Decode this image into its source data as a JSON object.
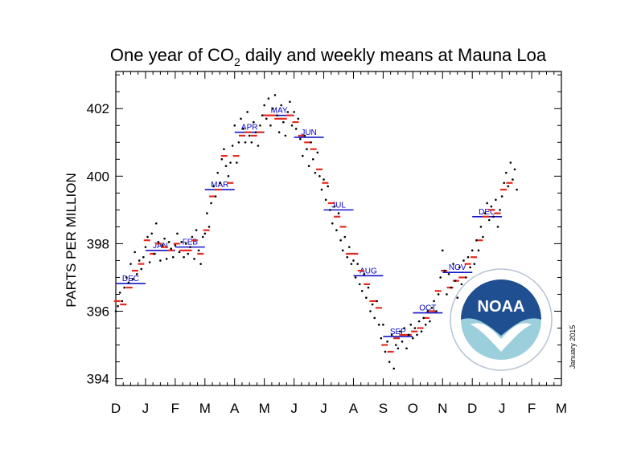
{
  "chart_data": {
    "type": "scatter",
    "title_main": "One year of CO",
    "title_sub": "2",
    "title_rest": " daily and weekly means at Mauna Loa",
    "ylabel": "PARTS PER MILLION",
    "ylim": [
      393.8,
      403.1
    ],
    "y_ticks": [
      "394",
      "396",
      "398",
      "400",
      "402"
    ],
    "x_tick_labels": [
      "D",
      "J",
      "F",
      "M",
      "A",
      "M",
      "J",
      "J",
      "A",
      "S",
      "O",
      "N",
      "D",
      "J",
      "F",
      "M"
    ],
    "date_stamp": "January 2015",
    "colors": {
      "daily": "#000000",
      "weekly": "#e8281e",
      "monthly": "#1414c8",
      "noaa_blue": "#1f4e91",
      "noaa_teal": "#9ccfdc"
    },
    "monthly_means": [
      {
        "label": "DEC",
        "start": 0.0,
        "end": 1.0,
        "value": 396.82
      },
      {
        "label": "JAN",
        "start": 1.0,
        "end": 2.0,
        "value": 397.8
      },
      {
        "label": "FEB",
        "start": 2.0,
        "end": 3.0,
        "value": 397.9
      },
      {
        "label": "MAR",
        "start": 3.0,
        "end": 4.0,
        "value": 399.6
      },
      {
        "label": "APR",
        "start": 4.0,
        "end": 5.0,
        "value": 401.3
      },
      {
        "label": "MAY",
        "start": 5.0,
        "end": 6.0,
        "value": 401.8
      },
      {
        "label": "JUN",
        "start": 6.0,
        "end": 7.0,
        "value": 401.15
      },
      {
        "label": "JUL",
        "start": 7.0,
        "end": 8.0,
        "value": 399.0
      },
      {
        "label": "AUG",
        "start": 8.0,
        "end": 9.0,
        "value": 397.05
      },
      {
        "label": "SEP",
        "start": 9.0,
        "end": 10.0,
        "value": 395.25
      },
      {
        "label": "OCT",
        "start": 10.0,
        "end": 11.0,
        "value": 395.95
      },
      {
        "label": "NOV",
        "start": 11.0,
        "end": 12.0,
        "value": 397.15
      },
      {
        "label": "DEC",
        "start": 12.0,
        "end": 13.0,
        "value": 398.8
      }
    ],
    "weekly_means": [
      [
        0.05,
        396.3
      ],
      [
        0.25,
        396.2
      ],
      [
        0.45,
        396.7
      ],
      [
        0.65,
        397.2
      ],
      [
        0.85,
        397.4
      ],
      [
        1.05,
        398.1
      ],
      [
        1.25,
        397.7
      ],
      [
        1.45,
        398.0
      ],
      [
        1.65,
        397.9
      ],
      [
        1.85,
        397.8
      ],
      [
        2.05,
        398.0
      ],
      [
        2.25,
        397.8
      ],
      [
        2.45,
        397.8
      ],
      [
        2.65,
        398.1
      ],
      [
        2.85,
        397.7
      ],
      [
        3.05,
        398.4
      ],
      [
        3.25,
        399.4
      ],
      [
        3.45,
        399.6
      ],
      [
        3.65,
        400.6
      ],
      [
        3.85,
        399.8
      ],
      [
        4.05,
        400.6
      ],
      [
        4.25,
        401.2
      ],
      [
        4.45,
        401.3
      ],
      [
        4.65,
        401.2
      ],
      [
        4.85,
        401.3
      ],
      [
        5.05,
        401.8
      ],
      [
        5.25,
        401.8
      ],
      [
        5.45,
        401.7
      ],
      [
        5.65,
        401.7
      ],
      [
        5.85,
        401.8
      ],
      [
        6.05,
        401.6
      ],
      [
        6.25,
        401.2
      ],
      [
        6.45,
        401.0
      ],
      [
        6.65,
        400.8
      ],
      [
        6.85,
        400.2
      ],
      [
        7.05,
        399.8
      ],
      [
        7.25,
        399.2
      ],
      [
        7.45,
        398.8
      ],
      [
        7.65,
        398.5
      ],
      [
        7.85,
        397.7
      ],
      [
        8.05,
        397.7
      ],
      [
        8.25,
        397.2
      ],
      [
        8.45,
        396.8
      ],
      [
        8.65,
        396.3
      ],
      [
        8.85,
        396.1
      ],
      [
        9.05,
        395.0
      ],
      [
        9.25,
        394.8
      ],
      [
        9.45,
        395.2
      ],
      [
        9.65,
        395.3
      ],
      [
        9.85,
        395.3
      ],
      [
        10.05,
        395.4
      ],
      [
        10.25,
        395.5
      ],
      [
        10.45,
        395.8
      ],
      [
        10.65,
        396.0
      ],
      [
        10.85,
        396.6
      ],
      [
        11.05,
        397.2
      ],
      [
        11.25,
        396.7
      ],
      [
        11.45,
        396.9
      ],
      [
        11.65,
        397.0
      ],
      [
        11.85,
        397.4
      ],
      [
        12.05,
        397.6
      ],
      [
        12.25,
        398.1
      ],
      [
        12.45,
        398.8
      ],
      [
        12.65,
        399.0
      ],
      [
        12.85,
        398.9
      ],
      [
        13.05,
        399.6
      ],
      [
        13.25,
        399.8
      ]
    ],
    "daily_values": [
      [
        0.0,
        396.0
      ],
      [
        0.07,
        396.15
      ],
      [
        0.14,
        396.55
      ],
      [
        0.21,
        396.3
      ],
      [
        0.29,
        396.7
      ],
      [
        0.36,
        397.0
      ],
      [
        0.43,
        396.85
      ],
      [
        0.5,
        397.4
      ],
      [
        0.57,
        396.95
      ],
      [
        0.64,
        397.75
      ],
      [
        0.71,
        397.1
      ],
      [
        0.79,
        397.5
      ],
      [
        0.86,
        397.25
      ],
      [
        0.93,
        397.6
      ],
      [
        1.0,
        397.9
      ],
      [
        1.07,
        398.2
      ],
      [
        1.14,
        397.45
      ],
      [
        1.21,
        398.3
      ],
      [
        1.29,
        397.7
      ],
      [
        1.36,
        398.6
      ],
      [
        1.43,
        398.05
      ],
      [
        1.5,
        397.5
      ],
      [
        1.57,
        397.95
      ],
      [
        1.64,
        398.15
      ],
      [
        1.71,
        397.55
      ],
      [
        1.79,
        398.05
      ],
      [
        1.86,
        397.85
      ],
      [
        1.93,
        397.6
      ],
      [
        2.0,
        397.95
      ],
      [
        2.07,
        398.3
      ],
      [
        2.14,
        397.75
      ],
      [
        2.21,
        398.05
      ],
      [
        2.29,
        397.6
      ],
      [
        2.36,
        398.0
      ],
      [
        2.43,
        397.7
      ],
      [
        2.5,
        397.9
      ],
      [
        2.57,
        398.2
      ],
      [
        2.64,
        397.55
      ],
      [
        2.71,
        398.4
      ],
      [
        2.79,
        397.8
      ],
      [
        2.86,
        397.4
      ],
      [
        2.93,
        398.2
      ],
      [
        3.0,
        398.3
      ],
      [
        3.07,
        398.9
      ],
      [
        3.14,
        398.5
      ],
      [
        3.21,
        399.2
      ],
      [
        3.29,
        399.7
      ],
      [
        3.36,
        399.4
      ],
      [
        3.43,
        400.1
      ],
      [
        3.5,
        399.8
      ],
      [
        3.57,
        400.5
      ],
      [
        3.64,
        400.8
      ],
      [
        3.71,
        400.3
      ],
      [
        3.79,
        400.0
      ],
      [
        3.86,
        400.4
      ],
      [
        3.93,
        400.9
      ],
      [
        4.0,
        401.5
      ],
      [
        4.07,
        400.4
      ],
      [
        4.14,
        401.0
      ],
      [
        4.21,
        401.7
      ],
      [
        4.29,
        401.4
      ],
      [
        4.36,
        401.0
      ],
      [
        4.43,
        401.9
      ],
      [
        4.5,
        401.2
      ],
      [
        4.57,
        401.0
      ],
      [
        4.64,
        401.6
      ],
      [
        4.71,
        401.3
      ],
      [
        4.79,
        400.9
      ],
      [
        4.86,
        401.5
      ],
      [
        4.93,
        401.8
      ],
      [
        5.0,
        402.1
      ],
      [
        5.07,
        401.7
      ],
      [
        5.14,
        402.3
      ],
      [
        5.21,
        401.5
      ],
      [
        5.29,
        402.0
      ],
      [
        5.36,
        402.4
      ],
      [
        5.43,
        401.8
      ],
      [
        5.5,
        401.3
      ],
      [
        5.57,
        402.1
      ],
      [
        5.64,
        401.6
      ],
      [
        5.71,
        401.2
      ],
      [
        5.79,
        401.9
      ],
      [
        5.86,
        402.2
      ],
      [
        5.93,
        401.5
      ],
      [
        6.0,
        401.9
      ],
      [
        6.07,
        401.4
      ],
      [
        6.14,
        401.7
      ],
      [
        6.21,
        401.1
      ],
      [
        6.29,
        400.6
      ],
      [
        6.36,
        401.2
      ],
      [
        6.43,
        400.8
      ],
      [
        6.5,
        400.3
      ],
      [
        6.57,
        401.0
      ],
      [
        6.64,
        400.5
      ],
      [
        6.71,
        400.1
      ],
      [
        6.79,
        400.7
      ],
      [
        6.86,
        400.0
      ],
      [
        6.93,
        399.6
      ],
      [
        7.0,
        399.9
      ],
      [
        7.07,
        399.3
      ],
      [
        7.14,
        399.7
      ],
      [
        7.21,
        399.0
      ],
      [
        7.29,
        398.6
      ],
      [
        7.36,
        399.1
      ],
      [
        7.43,
        398.4
      ],
      [
        7.5,
        398.9
      ],
      [
        7.57,
        398.1
      ],
      [
        7.64,
        397.8
      ],
      [
        7.71,
        398.2
      ],
      [
        7.79,
        397.6
      ],
      [
        7.86,
        397.9
      ],
      [
        7.93,
        397.4
      ],
      [
        8.0,
        397.5
      ],
      [
        8.07,
        397.0
      ],
      [
        8.14,
        397.4
      ],
      [
        8.21,
        396.8
      ],
      [
        8.29,
        396.6
      ],
      [
        8.36,
        397.1
      ],
      [
        8.43,
        396.4
      ],
      [
        8.5,
        396.7
      ],
      [
        8.57,
        396.0
      ],
      [
        8.64,
        396.2
      ],
      [
        8.71,
        395.8
      ],
      [
        8.79,
        396.3
      ],
      [
        8.86,
        395.6
      ],
      [
        8.93,
        395.2
      ],
      [
        9.0,
        395.6
      ],
      [
        9.07,
        394.8
      ],
      [
        9.14,
        395.1
      ],
      [
        9.21,
        394.5
      ],
      [
        9.29,
        395.3
      ],
      [
        9.36,
        394.3
      ],
      [
        9.43,
        395.0
      ],
      [
        9.5,
        394.9
      ],
      [
        9.57,
        395.4
      ],
      [
        9.64,
        395.1
      ],
      [
        9.71,
        395.5
      ],
      [
        9.79,
        394.9
      ],
      [
        9.86,
        395.3
      ],
      [
        9.93,
        395.6
      ],
      [
        10.0,
        395.2
      ],
      [
        10.07,
        395.5
      ],
      [
        10.14,
        395.3
      ],
      [
        10.21,
        395.7
      ],
      [
        10.29,
        395.4
      ],
      [
        10.36,
        395.8
      ],
      [
        10.43,
        395.6
      ],
      [
        10.5,
        396.0
      ],
      [
        10.57,
        395.7
      ],
      [
        10.64,
        396.1
      ],
      [
        10.71,
        396.3
      ],
      [
        10.79,
        396.0
      ],
      [
        10.86,
        396.5
      ],
      [
        10.93,
        397.0
      ],
      [
        11.0,
        397.8
      ],
      [
        11.07,
        397.2
      ],
      [
        11.14,
        396.5
      ],
      [
        11.21,
        397.1
      ],
      [
        11.29,
        396.7
      ],
      [
        11.36,
        397.4
      ],
      [
        11.43,
        396.9
      ],
      [
        11.5,
        396.4
      ],
      [
        11.57,
        397.3
      ],
      [
        11.64,
        396.8
      ],
      [
        11.71,
        397.5
      ],
      [
        11.79,
        397.0
      ],
      [
        11.86,
        397.6
      ],
      [
        11.93,
        397.3
      ],
      [
        12.0,
        397.8
      ],
      [
        12.07,
        397.4
      ],
      [
        12.14,
        398.1
      ],
      [
        12.21,
        397.8
      ],
      [
        12.29,
        398.5
      ],
      [
        12.36,
        398.2
      ],
      [
        12.43,
        398.9
      ],
      [
        12.5,
        399.2
      ],
      [
        12.57,
        398.7
      ],
      [
        12.64,
        399.1
      ],
      [
        12.71,
        398.8
      ],
      [
        12.79,
        399.3
      ],
      [
        12.86,
        398.5
      ],
      [
        12.93,
        399.0
      ],
      [
        13.0,
        399.4
      ],
      [
        13.07,
        399.8
      ],
      [
        13.14,
        400.1
      ],
      [
        13.21,
        399.7
      ],
      [
        13.29,
        400.4
      ],
      [
        13.36,
        399.9
      ],
      [
        13.43,
        400.2
      ],
      [
        13.5,
        399.6
      ]
    ]
  }
}
